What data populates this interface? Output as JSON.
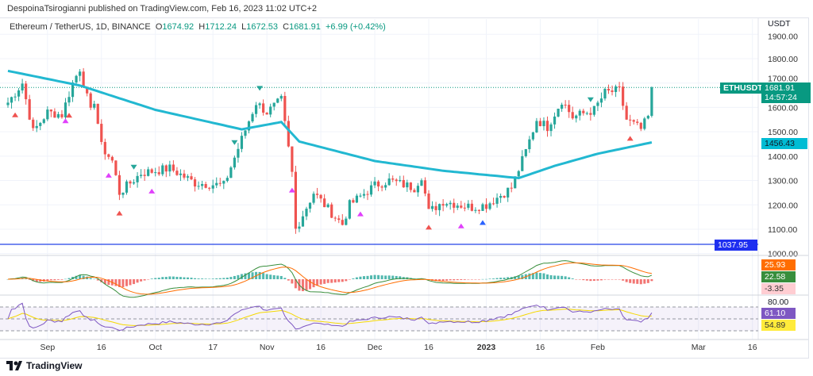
{
  "header": {
    "published": "DespoinaTsirogianni published on TradingView.com, Feb 16, 2023 11:02 UTC+2"
  },
  "ohlc": {
    "symbol": "Ethereum / TetherUS, 1D, BINANCE",
    "o_label": "O",
    "o": "1674.92",
    "h_label": "H",
    "h": "1712.24",
    "l_label": "L",
    "l": "1672.53",
    "c_label": "C",
    "c": "1681.91",
    "change": "+6.99 (+0.42%)"
  },
  "axis": {
    "currency": "USDT",
    "price_ticks": [
      "1900.00",
      "1800.00",
      "1700.00",
      "1600.00",
      "1500.00",
      "1400.00",
      "1300.00",
      "1200.00",
      "1100.00",
      "1000.00"
    ],
    "rsi_tick": "80.00",
    "time_ticks": [
      "Sep",
      "16",
      "Oct",
      "17",
      "Nov",
      "16",
      "Dec",
      "16",
      "2023",
      "16",
      "Feb",
      "Mar",
      "16"
    ]
  },
  "labels": {
    "symbol_tag": "ETHUSDT",
    "last_price": "1681.91",
    "countdown": "14:57:24",
    "ma_value": "1456.43",
    "line_value": "1037.95",
    "macd1": "25.93",
    "macd2": "22.58",
    "hist": "-3.35",
    "rsi": "61.10",
    "rsi_ma": "54.89"
  },
  "colors": {
    "up": "#26a69a",
    "down": "#ef5350",
    "ma": "#22b8d1",
    "hline": "#2445e8",
    "rsi": "#7e57c2",
    "rsi_ma": "#f5d800"
  },
  "footer": {
    "brand": "TradingView"
  },
  "chart_data": {
    "type": "candlestick",
    "title": "Ethereum / TetherUS, 1D, BINANCE",
    "ylabel": "USDT",
    "ylim": [
      1000,
      1900
    ],
    "close_anchors": [
      [
        "2022-08-21",
        1620
      ],
      [
        "2022-08-25",
        1700
      ],
      [
        "2022-08-28",
        1500
      ],
      [
        "2022-09-01",
        1580
      ],
      [
        "2022-09-05",
        1570
      ],
      [
        "2022-09-08",
        1700
      ],
      [
        "2022-09-10",
        1760
      ],
      [
        "2022-09-13",
        1580
      ],
      [
        "2022-09-14",
        1630
      ],
      [
        "2022-09-16",
        1440
      ],
      [
        "2022-09-19",
        1380
      ],
      [
        "2022-09-21",
        1250
      ],
      [
        "2022-09-27",
        1330
      ],
      [
        "2022-10-05",
        1350
      ],
      [
        "2022-10-12",
        1290
      ],
      [
        "2022-10-20",
        1280
      ],
      [
        "2022-10-25",
        1470
      ],
      [
        "2022-10-29",
        1620
      ],
      [
        "2022-11-01",
        1580
      ],
      [
        "2022-11-05",
        1630
      ],
      [
        "2022-11-08",
        1330
      ],
      [
        "2022-11-09",
        1100
      ],
      [
        "2022-11-14",
        1250
      ],
      [
        "2022-11-20",
        1150
      ],
      [
        "2022-11-22",
        1120
      ],
      [
        "2022-11-24",
        1200
      ],
      [
        "2022-12-01",
        1280
      ],
      [
        "2022-12-05",
        1300
      ],
      [
        "2022-12-12",
        1270
      ],
      [
        "2022-12-14",
        1320
      ],
      [
        "2022-12-16",
        1170
      ],
      [
        "2022-12-20",
        1215
      ],
      [
        "2022-12-28",
        1190
      ],
      [
        "2023-01-01",
        1200
      ],
      [
        "2023-01-08",
        1270
      ],
      [
        "2023-01-12",
        1420
      ],
      [
        "2023-01-15",
        1550
      ],
      [
        "2023-01-18",
        1520
      ],
      [
        "2023-01-22",
        1630
      ],
      [
        "2023-01-25",
        1560
      ],
      [
        "2023-01-31",
        1590
      ],
      [
        "2023-02-03",
        1660
      ],
      [
        "2023-02-07",
        1670
      ],
      [
        "2023-02-09",
        1550
      ],
      [
        "2023-02-13",
        1510
      ],
      [
        "2023-02-15",
        1560
      ],
      [
        "2023-02-16",
        1681.91
      ]
    ],
    "ma_anchors": [
      [
        "2022-08-21",
        1750
      ],
      [
        "2022-09-10",
        1690
      ],
      [
        "2022-10-01",
        1590
      ],
      [
        "2022-10-25",
        1510
      ],
      [
        "2022-11-05",
        1540
      ],
      [
        "2022-11-10",
        1460
      ],
      [
        "2022-12-01",
        1380
      ],
      [
        "2022-12-20",
        1340
      ],
      [
        "2023-01-10",
        1310
      ],
      [
        "2023-01-20",
        1360
      ],
      [
        "2023-02-01",
        1410
      ],
      [
        "2023-02-16",
        1456.43
      ]
    ],
    "horizontal_line": 1037.95,
    "rsi_levels": [
      80,
      20
    ]
  }
}
